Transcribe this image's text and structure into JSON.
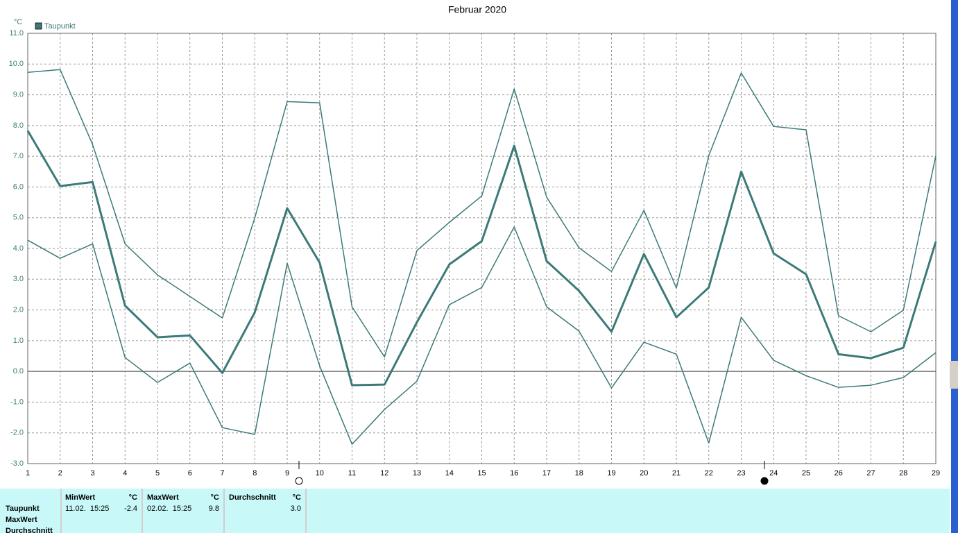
{
  "chart_data": {
    "type": "line",
    "title": "Februar 2020",
    "y_unit": "°C",
    "x": [
      1,
      2,
      3,
      4,
      5,
      6,
      7,
      8,
      9,
      10,
      11,
      12,
      13,
      14,
      15,
      16,
      17,
      18,
      19,
      20,
      21,
      22,
      23,
      24,
      25,
      26,
      27,
      28,
      29
    ],
    "xlim": [
      1,
      29
    ],
    "xticks": [
      1,
      2,
      3,
      4,
      5,
      6,
      7,
      8,
      9,
      10,
      11,
      12,
      13,
      14,
      15,
      16,
      17,
      18,
      19,
      20,
      21,
      22,
      23,
      24,
      25,
      26,
      27,
      28,
      29
    ],
    "ylim": [
      -3,
      11
    ],
    "yticks": [
      {
        "value": -3,
        "label": "-3.0"
      },
      {
        "value": -2,
        "label": "-2.0"
      },
      {
        "value": -1,
        "label": "-1.0"
      },
      {
        "value": 0,
        "label": "0.0"
      },
      {
        "value": 1,
        "label": "1.0"
      },
      {
        "value": 2,
        "label": "2.0"
      },
      {
        "value": 3,
        "label": "3.0"
      },
      {
        "value": 4,
        "label": "4.0"
      },
      {
        "value": 5,
        "label": "5.0"
      },
      {
        "value": 6,
        "label": "6.0"
      },
      {
        "value": 7,
        "label": "7.0"
      },
      {
        "value": 8,
        "label": "8.0"
      },
      {
        "value": 9,
        "label": "9.0"
      },
      {
        "value": 10,
        "label": "10.0"
      },
      {
        "value": 11,
        "label": "11.0"
      }
    ],
    "grid": true,
    "legend": "top-left",
    "series": [
      {
        "name": "Taupunkt",
        "color": "#3b7a78",
        "line_width": 3,
        "values": [
          7.83,
          6.03,
          6.16,
          2.14,
          1.11,
          1.17,
          -0.05,
          1.92,
          5.31,
          3.54,
          -0.45,
          -0.43,
          1.6,
          3.48,
          4.24,
          7.34,
          3.59,
          2.62,
          1.29,
          3.82,
          1.76,
          2.73,
          6.5,
          3.84,
          3.16,
          0.56,
          0.43,
          0.77,
          4.22
        ]
      },
      {
        "color": "#3b7a78",
        "line_width": 1.5,
        "values": [
          9.73,
          9.82,
          7.38,
          4.15,
          3.14,
          2.44,
          1.74,
          4.99,
          8.78,
          8.74,
          2.1,
          0.47,
          3.93,
          4.85,
          5.71,
          9.19,
          5.67,
          4.02,
          3.25,
          5.24,
          2.71,
          7.02,
          9.71,
          7.97,
          7.86,
          1.81,
          1.29,
          1.99,
          7.02
        ]
      },
      {
        "color": "#3b7a78",
        "line_width": 1.5,
        "values": [
          4.27,
          3.68,
          4.15,
          0.45,
          -0.36,
          0.27,
          -1.83,
          -2.05,
          3.52,
          0.18,
          -2.37,
          -1.24,
          -0.32,
          2.17,
          2.73,
          4.7,
          2.1,
          1.31,
          -0.54,
          0.95,
          0.56,
          -2.33,
          1.76,
          0.36,
          -0.14,
          -0.52,
          -0.45,
          -0.2,
          0.61
        ]
      }
    ]
  },
  "table": {
    "header": [
      "MinWert",
      "°C",
      "MaxWert",
      "°C",
      "Durchschnitt",
      "°C"
    ],
    "rows": [
      [
        "Taupunkt",
        "11.02.  15:25",
        "-2.4",
        "02.02.  15:25",
        "9.8",
        "3.0"
      ],
      [
        "MaxWert"
      ],
      [
        "Durchschnitt"
      ]
    ]
  }
}
